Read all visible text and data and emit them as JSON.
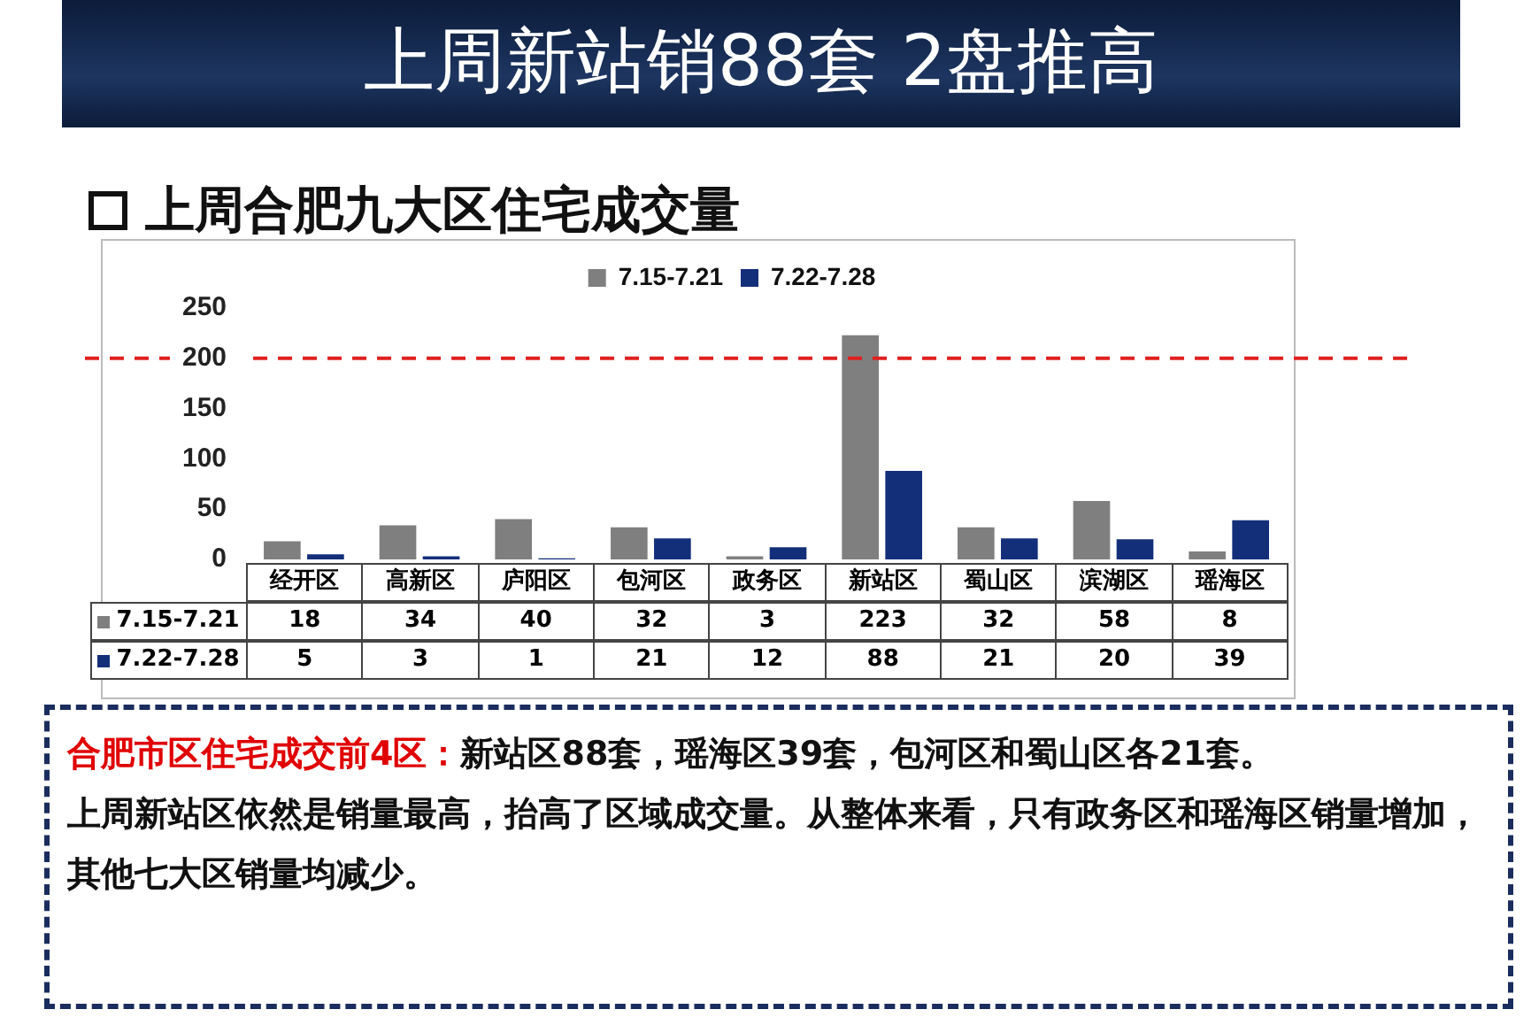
{
  "chart_data": {
    "type": "bar",
    "title": "上周新站销88套 2盘推高",
    "subtitle": "上周合肥九大区住宅成交量",
    "categories": [
      "经开区",
      "高新区",
      "庐阳区",
      "包河区",
      "政务区",
      "新站区",
      "蜀山区",
      "滨湖区",
      "瑶海区"
    ],
    "series": [
      {
        "name": "7.15-7.21",
        "color": "#7f7f7f",
        "values": [
          18,
          34,
          40,
          32,
          3,
          223,
          32,
          58,
          8
        ]
      },
      {
        "name": "7.22-7.28",
        "color": "#132f7a",
        "values": [
          5,
          3,
          1,
          21,
          12,
          88,
          21,
          20,
          39
        ]
      }
    ],
    "ylim": [
      0,
      250
    ],
    "yticks": [
      0,
      50,
      100,
      150,
      200,
      250
    ],
    "grid": false,
    "legend": "top",
    "data_labels": true,
    "ref_lines": [
      {
        "axis": "y",
        "value": 200,
        "color": "#e02020",
        "line_style": "dashed"
      }
    ],
    "annotations": [
      "合肥市区住宅成交前4区：",
      "新站区88套，瑶海区39套，包河区和蜀山区各21套。",
      "上周新站区依然是销量最高，抬高了区域成交量。从整体来看，只有政务区和瑶海区销量增加，其他七大区销量均减少。"
    ]
  }
}
